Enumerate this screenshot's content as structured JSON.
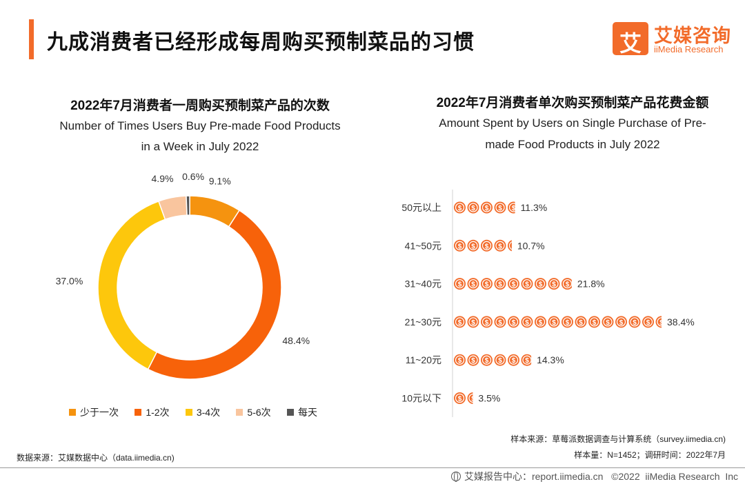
{
  "header": {
    "title": "九成消费者已经形成每周购买预制菜品的习惯",
    "logo_mark": "艾",
    "logo_cn": "艾媒咨询",
    "logo_en": "iiMedia Research"
  },
  "left": {
    "title_cn": "2022年7月消费者一周购买预制菜产品的次数",
    "title_en_1": "Number of Times Users Buy Pre-made Food Products",
    "title_en_2": "in a Week in July 2022"
  },
  "right": {
    "title_cn": "2022年7月消费者单次购买预制菜产品花费金额",
    "title_en_1": "Amount Spent by Users on Single Purchase of Pre-",
    "title_en_2": "made Food Products in July 2022"
  },
  "chart_data": [
    {
      "type": "pie",
      "title": "2022年7月消费者一周购买预制菜产品的次数",
      "donut": true,
      "categories": [
        "少于一次",
        "1-2次",
        "3-4次",
        "5-6次",
        "每天"
      ],
      "values": [
        9.1,
        48.4,
        37.0,
        4.9,
        0.6
      ],
      "labels": [
        "9.1%",
        "48.4%",
        "37.0%",
        "4.9%",
        "0.6%"
      ],
      "colors": [
        "#f5930f",
        "#f7620a",
        "#fdc70c",
        "#f9c59e",
        "#555555"
      ],
      "legend": "bottom"
    },
    {
      "type": "bar",
      "title": "2022年7月消费者单次购买预制菜产品花费金额",
      "orientation": "horizontal",
      "categories": [
        "50元以上",
        "41~50元",
        "31~40元",
        "21~30元",
        "11~20元",
        "10元以下"
      ],
      "values": [
        11.3,
        10.7,
        21.8,
        38.4,
        14.3,
        3.5
      ],
      "labels": [
        "11.3%",
        "10.7%",
        "21.8%",
        "38.4%",
        "14.3%",
        "3.5%"
      ],
      "unit": "%",
      "color": "#f26b2a",
      "icon_glyph": "$"
    }
  ],
  "footer": {
    "source_left": "数据来源：艾媒数据中心（data.iimedia.cn)",
    "source_right": "样本来源：草莓派数据调查与计算系统（survey.iimedia.cn)",
    "sample": "样本量：N=1452；调研时间：2022年7月",
    "copyright": "艾媒报告中心：report.iimedia.cn   ©2022  iiMedia Research  Inc"
  }
}
